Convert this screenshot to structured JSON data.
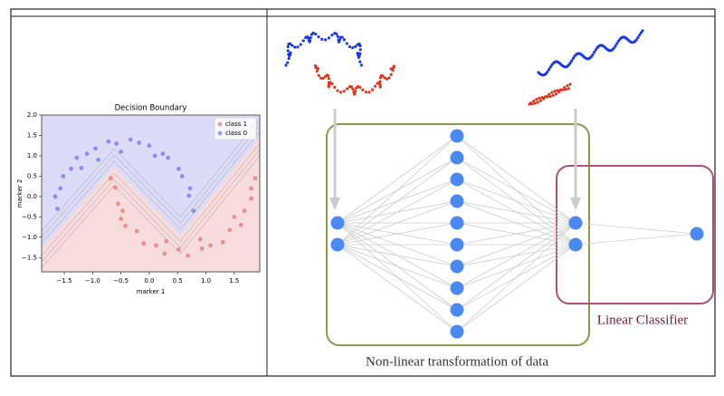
{
  "chart_data": {
    "type": "scatter",
    "title": "Decision Boundary",
    "x_label": "marker 1",
    "y_label": "marker 2",
    "xlim": [
      -1.9,
      1.95
    ],
    "ylim": [
      -1.85,
      2.0
    ],
    "xticks": [
      {
        "value": -1.5,
        "label": "−1.5"
      },
      {
        "value": -1,
        "label": "−1.0"
      },
      {
        "value": -0.5,
        "label": "−0.5"
      },
      {
        "value": 0,
        "label": "0.0"
      },
      {
        "value": 0.5,
        "label": "0.5"
      },
      {
        "value": 1,
        "label": "1.0"
      },
      {
        "value": 1.5,
        "label": "1.5"
      }
    ],
    "yticks": [
      {
        "value": -1.5,
        "label": "−1.5"
      },
      {
        "value": -1,
        "label": "−1.0"
      },
      {
        "value": -0.5,
        "label": "−0.5"
      },
      {
        "value": 0,
        "label": "0.0"
      },
      {
        "value": 0.5,
        "label": "0.5"
      },
      {
        "value": 1,
        "label": "1.0"
      },
      {
        "value": 1.5,
        "label": "1.5"
      },
      {
        "value": 2,
        "label": "2.0"
      }
    ],
    "legend": "upper right",
    "series": [
      {
        "name": "class 1",
        "color": "#e05050",
        "x": [
          -0.68,
          -0.6,
          -0.55,
          -0.47,
          -0.42,
          -0.22,
          -0.1,
          0.12,
          0.27,
          0.52,
          0.68,
          0.93,
          1.08,
          1.3,
          1.42,
          1.62,
          1.68,
          1.8,
          1.8,
          1.87,
          -0.5,
          0.3,
          0.9,
          1.5
        ],
        "values": [
          0.45,
          0.22,
          -0.18,
          -0.35,
          -0.72,
          -0.85,
          -1.15,
          -1.2,
          -1.4,
          -1.3,
          -1.45,
          -1.28,
          -1.2,
          -1.12,
          -0.82,
          -0.7,
          -0.35,
          -0.05,
          0.2,
          0.45,
          -0.55,
          -1.1,
          -1.05,
          -0.5
        ]
      },
      {
        "name": "class 0",
        "color": "#4a50e0",
        "x": [
          0.78,
          0.7,
          0.72,
          0.58,
          0.52,
          0.33,
          0.24,
          0.0,
          -0.18,
          -0.33,
          -0.58,
          -0.72,
          -0.95,
          -1.1,
          -1.28,
          -1.38,
          -1.52,
          -1.57,
          -1.66,
          -1.62,
          -0.5,
          -1.2,
          0.1,
          -0.9
        ],
        "values": [
          -0.35,
          0.02,
          0.2,
          0.5,
          0.68,
          0.95,
          1.05,
          1.25,
          1.32,
          1.4,
          1.3,
          1.35,
          1.18,
          1.05,
          0.95,
          0.68,
          0.5,
          0.2,
          0.0,
          -0.3,
          1.1,
          0.7,
          1.0,
          0.9
        ]
      }
    ]
  },
  "diagram": {
    "transform_label": "Non-linear transformation of data",
    "classifier_label": "Linear Classifier"
  }
}
